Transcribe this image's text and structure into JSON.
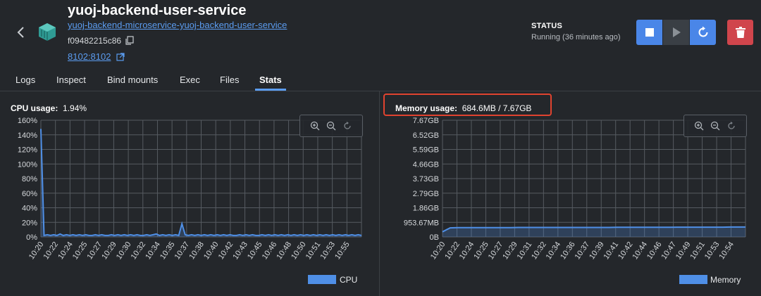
{
  "container": {
    "name": "yuoj-backend-user-service",
    "image": "yuoj-backend-microservice-yuoj-backend-user-service",
    "id": "f09482215c86",
    "port": "8102:8102"
  },
  "status": {
    "heading": "STATUS",
    "value": "Running (36 minutes ago)"
  },
  "icons": {
    "back": "chevron-left-icon",
    "container": "container-icon",
    "copy": "copy-icon",
    "external": "external-link-icon",
    "stop": "stop-icon",
    "play": "play-icon",
    "restart": "restart-icon",
    "delete": "trash-icon",
    "zoom_in": "zoom-in-icon",
    "zoom_out": "zoom-out-icon",
    "reset": "reset-icon"
  },
  "colors": {
    "accent": "#4a86e8",
    "danger": "#d0454c",
    "series": "#4f8fe6",
    "highlight": "#e0432f"
  },
  "tabs": [
    {
      "label": "Logs"
    },
    {
      "label": "Inspect"
    },
    {
      "label": "Bind mounts"
    },
    {
      "label": "Exec"
    },
    {
      "label": "Files"
    },
    {
      "label": "Stats"
    }
  ],
  "active_tab": "Stats",
  "cpu": {
    "label": "CPU usage:",
    "value": "1.94%"
  },
  "memory": {
    "label": "Memory usage:",
    "value": "684.6MB / 7.67GB"
  },
  "chart_data": [
    {
      "type": "line",
      "title": "CPU usage:  1.94%",
      "yticks": [
        "160%",
        "140%",
        "120%",
        "100%",
        "80%",
        "60%",
        "40%",
        "20%",
        "0%"
      ],
      "xticks": [
        "10:20",
        "10:22",
        "10:24",
        "10:25",
        "10:27",
        "10:29",
        "10:30",
        "10:32",
        "10:34",
        "10:35",
        "10:37",
        "10:38",
        "10:40",
        "10:42",
        "10:43",
        "10:45",
        "10:46",
        "10:48",
        "10:50",
        "10:51",
        "10:53",
        "10:55"
      ],
      "ylim": [
        0,
        160
      ],
      "grid": true,
      "legend": "bottom-right",
      "series": [
        {
          "name": "CPU",
          "values": [
            148,
            2,
            3,
            2,
            3,
            2,
            4,
            2,
            3,
            2,
            3,
            2,
            3,
            2,
            3,
            2,
            2,
            3,
            2,
            3,
            2,
            2,
            3,
            2,
            3,
            2,
            3,
            2,
            3,
            2,
            3,
            2,
            2,
            3,
            2,
            3,
            4,
            2,
            3,
            2,
            3,
            2,
            3,
            2,
            18,
            3,
            2,
            3,
            2,
            3,
            2,
            3,
            2,
            3,
            2,
            3,
            2,
            3,
            2,
            3,
            2,
            2,
            3,
            2,
            3,
            2,
            3,
            2,
            2,
            3,
            2,
            3,
            2,
            3,
            2,
            3,
            2,
            3,
            2,
            3,
            2,
            3,
            2,
            3,
            2,
            3,
            2,
            3,
            2,
            3,
            2,
            3,
            2,
            3,
            2,
            3,
            2,
            3,
            2,
            3,
            2
          ]
        }
      ]
    },
    {
      "type": "line",
      "title": "Memory usage:  684.6MB / 7.67GB",
      "yticks": [
        "7.67GB",
        "6.52GB",
        "5.59GB",
        "4.66GB",
        "3.73GB",
        "2.79GB",
        "1.86GB",
        "953.67MB",
        "0B"
      ],
      "xticks": [
        "10:20",
        "10:22",
        "10:24",
        "10:25",
        "10:27",
        "10:29",
        "10:31",
        "10:32",
        "10:34",
        "10:36",
        "10:37",
        "10:39",
        "10:41",
        "10:42",
        "10:44",
        "10:46",
        "10:47",
        "10:49",
        "10:51",
        "10:53",
        "10:54"
      ],
      "ylim": [
        0,
        8
      ],
      "grid": true,
      "legend": "bottom-right",
      "series": [
        {
          "name": "Memory",
          "values": [
            0.35,
            0.62,
            0.64,
            0.64,
            0.64,
            0.64,
            0.64,
            0.64,
            0.64,
            0.64,
            0.65,
            0.65,
            0.65,
            0.65,
            0.65,
            0.65,
            0.65,
            0.65,
            0.65,
            0.65,
            0.65,
            0.65,
            0.65,
            0.66,
            0.66,
            0.66,
            0.66,
            0.66,
            0.66,
            0.66,
            0.66,
            0.67,
            0.67,
            0.67,
            0.67,
            0.67,
            0.67,
            0.67,
            0.68,
            0.68,
            0.68
          ]
        }
      ]
    }
  ]
}
